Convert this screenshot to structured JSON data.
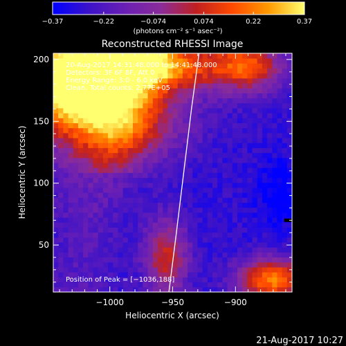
{
  "chart_data": {
    "type": "heatmap",
    "title": "Reconstructed RHESSI Image",
    "xlabel": "Heliocentric X (arcsec)",
    "ylabel": "Heliocentric Y (arcsec)",
    "xlim": [
      -1045,
      -855
    ],
    "ylim": [
      12,
      205
    ],
    "xticks": [
      -1000,
      -950,
      -900
    ],
    "yticks": [
      50,
      100,
      150,
      200
    ],
    "xtick_labels": [
      "−1000",
      "−950",
      "−900"
    ],
    "ytick_labels": [
      "50",
      "100",
      "150",
      "200"
    ],
    "colorbar": {
      "min": -0.37,
      "max": 0.37,
      "ticks": [
        -0.37,
        -0.22,
        -0.074,
        0.074,
        0.22,
        0.37
      ],
      "tick_labels": [
        "−0.37",
        "−0.22",
        "−0.074",
        "0.074",
        "0.22",
        "0.37"
      ],
      "units_label": "(photons cm⁻² s⁻¹ asec⁻²)",
      "colormap": [
        "#0000ff",
        "#3b12c8",
        "#6a1fb4",
        "#8a2c9a",
        "#c02020",
        "#ff4a00",
        "#ff9a00",
        "#ffff70"
      ]
    },
    "annotations": [
      "20-Aug-2017 14:31:48.000 to 14:41:48.000",
      "Detectors: 3F 6F 8F, Att 0",
      "Energy Range: 3.0 - 6.0 keV",
      "Clean. Total counts: 2.77E+05"
    ],
    "peak_label": "Position of Peak = [−1036,188]",
    "peak": [
      -1036,
      188
    ],
    "limb_x_samples": [
      -953,
      -947,
      -941,
      -935,
      -929
    ],
    "limb_y_samples": [
      12,
      60,
      110,
      160,
      205
    ],
    "marker": [
      -858,
      70
    ],
    "intensity_sources": [
      {
        "x": -1035,
        "y": 185,
        "amp": 0.75,
        "sx": 30,
        "sy": 28
      },
      {
        "x": -985,
        "y": 200,
        "amp": 0.45,
        "sx": 25,
        "sy": 18
      },
      {
        "x": -990,
        "y": 150,
        "amp": 0.35,
        "sx": 35,
        "sy": 22
      },
      {
        "x": -945,
        "y": 195,
        "amp": 0.35,
        "sx": 30,
        "sy": 15
      },
      {
        "x": -890,
        "y": 195,
        "amp": 0.4,
        "sx": 20,
        "sy": 15
      },
      {
        "x": -955,
        "y": 40,
        "amp": 0.35,
        "sx": 12,
        "sy": 22
      },
      {
        "x": -870,
        "y": 22,
        "amp": 0.5,
        "sx": 20,
        "sy": 12
      },
      {
        "x": -1035,
        "y": 100,
        "amp": 0.05,
        "sx": 20,
        "sy": 25
      }
    ],
    "background_level": -0.28
  },
  "footer": {
    "timestamp": "21-Aug-2017 10:27"
  }
}
